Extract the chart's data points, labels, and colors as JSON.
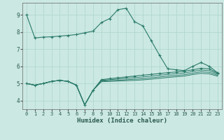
{
  "xlabel": "Humidex (Indice chaleur)",
  "bg_color": "#cbe8e2",
  "grid_color": "#b0d8d0",
  "line_color": "#2a7a6a",
  "xlim": [
    -0.5,
    23.5
  ],
  "ylim": [
    3.5,
    9.7
  ],
  "yticks": [
    4,
    5,
    6,
    7,
    8,
    9
  ],
  "xticks": [
    0,
    1,
    2,
    3,
    4,
    5,
    6,
    7,
    8,
    9,
    10,
    11,
    12,
    13,
    14,
    15,
    16,
    17,
    18,
    19,
    20,
    21,
    22,
    23
  ],
  "line1_x": [
    0,
    1,
    2,
    3,
    4,
    5,
    6,
    7,
    8,
    9,
    10,
    11,
    12,
    13,
    14,
    15,
    16,
    17,
    18,
    19,
    20,
    21,
    22,
    23
  ],
  "line1_y": [
    9.0,
    7.65,
    7.7,
    7.72,
    7.76,
    7.8,
    7.85,
    7.95,
    8.05,
    8.55,
    8.78,
    9.3,
    9.38,
    8.6,
    8.35,
    7.5,
    6.65,
    5.85,
    5.8,
    5.75,
    6.0,
    6.22,
    6.0,
    5.62
  ],
  "line2_x": [
    0,
    1,
    2,
    3,
    4,
    5,
    6,
    7,
    8,
    9,
    10,
    11,
    12,
    13,
    14,
    15,
    16,
    17,
    18,
    19,
    20,
    21,
    22,
    23
  ],
  "line2_y": [
    5.0,
    4.9,
    5.0,
    5.12,
    5.18,
    5.12,
    4.9,
    3.75,
    4.6,
    5.22,
    5.28,
    5.33,
    5.38,
    5.43,
    5.48,
    5.53,
    5.58,
    5.63,
    5.67,
    5.71,
    5.8,
    5.88,
    5.85,
    5.6
  ],
  "line3_x": [
    0,
    1,
    2,
    3,
    4,
    5,
    6,
    7,
    8,
    9,
    10,
    11,
    12,
    13,
    14,
    15,
    16,
    17,
    18,
    19,
    20,
    21,
    22,
    23
  ],
  "line3_y": [
    5.0,
    4.9,
    5.0,
    5.12,
    5.18,
    5.12,
    4.9,
    3.75,
    4.6,
    5.18,
    5.22,
    5.26,
    5.3,
    5.34,
    5.38,
    5.43,
    5.48,
    5.53,
    5.57,
    5.61,
    5.7,
    5.78,
    5.75,
    5.55
  ],
  "line4_x": [
    0,
    1,
    2,
    3,
    4,
    5,
    6,
    7,
    8,
    9,
    10,
    11,
    12,
    13,
    14,
    15,
    16,
    17,
    18,
    19,
    20,
    21,
    22,
    23
  ],
  "line4_y": [
    5.0,
    4.9,
    5.0,
    5.12,
    5.18,
    5.12,
    4.9,
    3.75,
    4.6,
    5.14,
    5.17,
    5.19,
    5.22,
    5.25,
    5.28,
    5.33,
    5.38,
    5.43,
    5.47,
    5.51,
    5.6,
    5.68,
    5.65,
    5.48
  ],
  "line5_x": [
    0,
    1,
    2,
    3,
    4,
    5,
    6,
    7,
    8,
    9,
    10,
    11,
    12,
    13,
    14,
    15,
    16,
    17,
    18,
    19,
    20,
    21,
    22,
    23
  ],
  "line5_y": [
    5.0,
    4.9,
    5.0,
    5.12,
    5.18,
    5.12,
    4.9,
    3.75,
    4.6,
    5.1,
    5.12,
    5.14,
    5.16,
    5.18,
    5.21,
    5.25,
    5.3,
    5.35,
    5.39,
    5.43,
    5.52,
    5.59,
    5.56,
    5.42
  ]
}
